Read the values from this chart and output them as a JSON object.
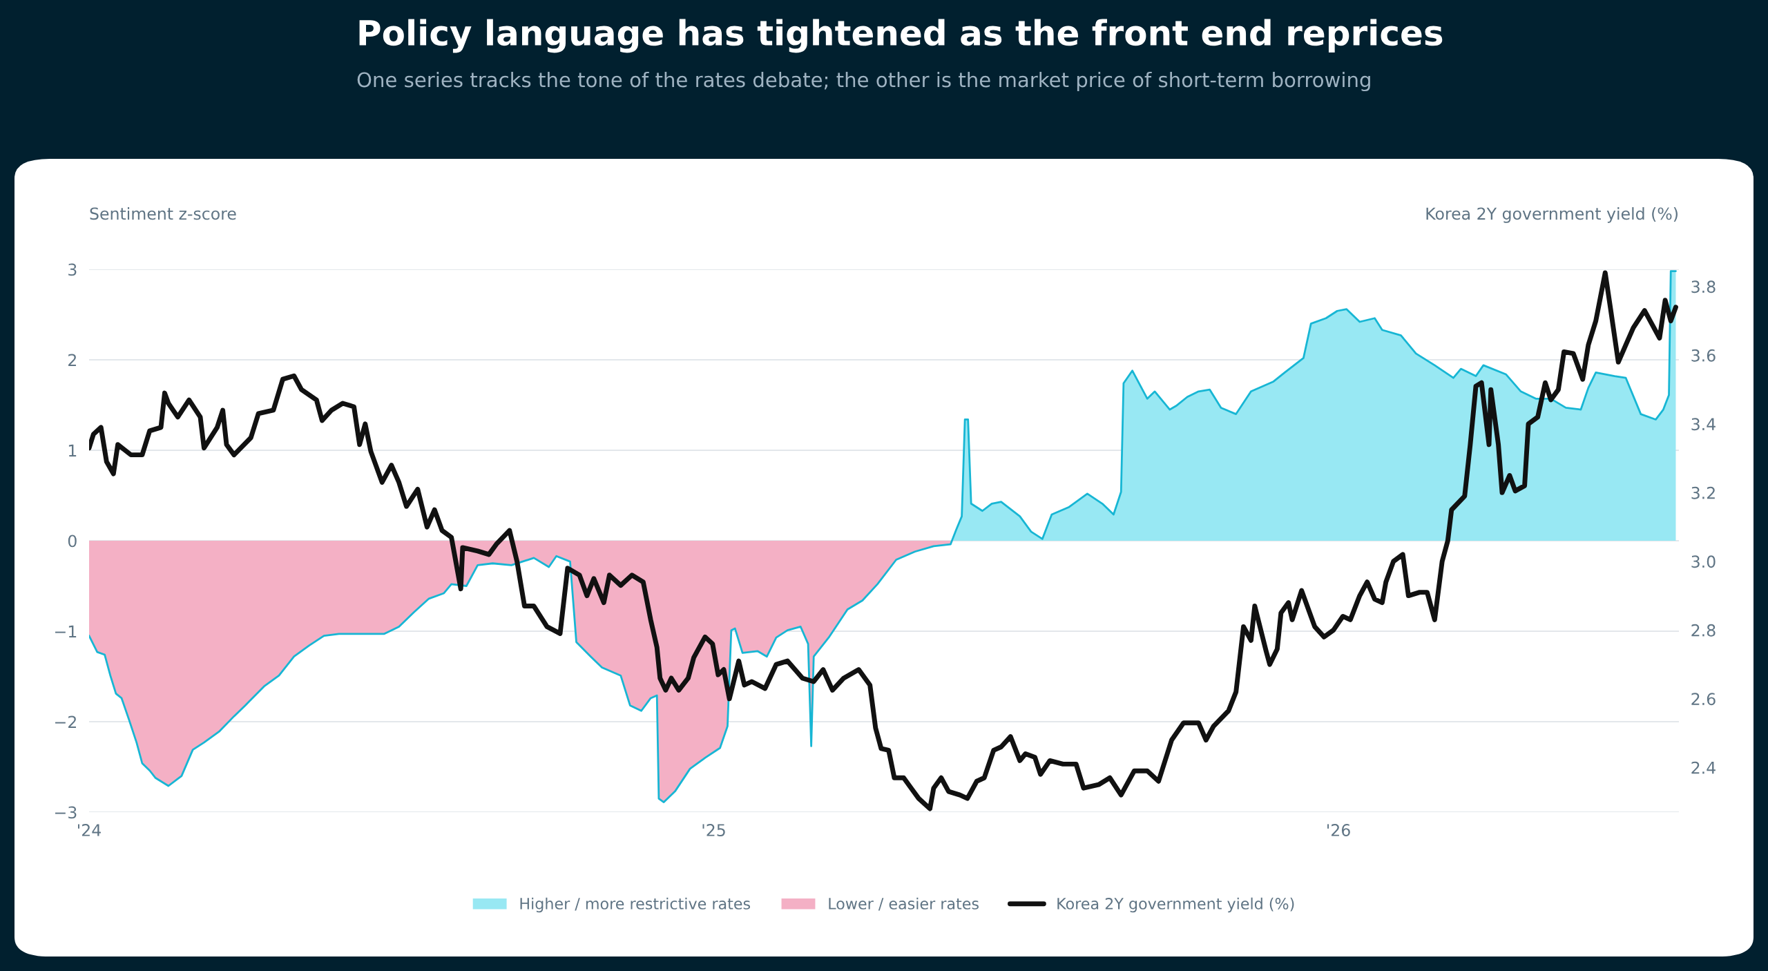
{
  "chart_data": {
    "type": "area",
    "title": "Policy language has tightened as the front end reprices",
    "subtitle": "One series tracks the tone of the rates debate; the other is the market price of short-term borrowing",
    "ylabel": "Sentiment z-score",
    "y2label": "Korea 2Y government yield (%)",
    "xlim": [
      2024,
      2026.545
    ],
    "xticks": [
      {
        "value": 2024,
        "label": "'24"
      },
      {
        "value": 2025,
        "label": "'25"
      },
      {
        "value": 2026,
        "label": "'26"
      }
    ],
    "ylim": [
      -3,
      3
    ],
    "yticks": [
      {
        "value": -3,
        "label": "−3"
      },
      {
        "value": -2,
        "label": "−2"
      },
      {
        "value": -1,
        "label": "−1"
      },
      0,
      1,
      2,
      3
    ],
    "y2lim": [
      2.27,
      3.85
    ],
    "y2ticks": [
      2.4,
      2.6,
      2.8,
      {
        "value": 3,
        "label": "3.0"
      },
      3.2,
      3.4,
      3.6,
      3.8
    ],
    "grid": "y",
    "legend": "bottom",
    "series": [
      {
        "name": "Higher / more restrictive rates",
        "color": "#98e8f3",
        "x": [
          2025.383,
          2025.388,
          2025.397,
          2025.402,
          2025.407,
          2025.412,
          2025.43,
          2025.445,
          2025.46,
          2025.49,
          2025.508,
          2025.526,
          2025.541,
          2025.568,
          2025.598,
          2025.622,
          2025.64,
          2025.652,
          2025.656,
          2025.67,
          2025.694,
          2025.706,
          2025.73,
          2025.74,
          2025.758,
          2025.776,
          2025.794,
          2025.812,
          2025.836,
          2025.86,
          2025.896,
          2025.914,
          2025.944,
          2025.956,
          2025.98,
          2025.998,
          2026.013,
          2026.034,
          2026.058,
          2026.07,
          2026.1,
          2026.124,
          2026.154,
          2026.184,
          2026.196,
          2026.22,
          2026.232,
          2026.268,
          2026.292,
          2026.316,
          2026.34,
          2026.364,
          2026.388,
          2026.4,
          2026.412,
          2026.442,
          2026.46,
          2026.484,
          2026.508,
          2026.52,
          2026.529,
          2026.532,
          2026.54
        ],
        "values": [
          0,
          0.12,
          0.27,
          1.34,
          1.34,
          0.41,
          0.33,
          0.41,
          0.43,
          0.27,
          0.1,
          0.02,
          0.29,
          0.37,
          0.52,
          0.41,
          0.29,
          0.54,
          1.74,
          1.88,
          1.57,
          1.65,
          1.45,
          1.49,
          1.59,
          1.65,
          1.67,
          1.47,
          1.4,
          1.65,
          1.76,
          1.86,
          2.02,
          2.4,
          2.46,
          2.54,
          2.56,
          2.42,
          2.46,
          2.33,
          2.27,
          2.07,
          1.94,
          1.8,
          1.9,
          1.82,
          1.94,
          1.84,
          1.65,
          1.57,
          1.57,
          1.47,
          1.45,
          1.69,
          1.86,
          1.82,
          1.8,
          1.4,
          1.34,
          1.45,
          1.61,
          2.98,
          2.98
        ]
      },
      {
        "name": "Lower / easier rates",
        "color": "#f4b0c5",
        "x": [
          2024.0,
          2024.013,
          2024.025,
          2024.034,
          2024.043,
          2024.052,
          2024.064,
          2024.076,
          2024.085,
          2024.097,
          2024.106,
          2024.127,
          2024.148,
          2024.166,
          2024.184,
          2024.208,
          2024.232,
          2024.25,
          2024.28,
          2024.304,
          2024.328,
          2024.352,
          2024.376,
          2024.4,
          2024.436,
          2024.472,
          2024.496,
          2024.52,
          2024.544,
          2024.568,
          2024.58,
          2024.604,
          2024.622,
          2024.646,
          2024.676,
          2024.712,
          2024.736,
          2024.748,
          2024.77,
          2024.78,
          2024.803,
          2024.821,
          2024.851,
          2024.866,
          2024.884,
          2024.899,
          2024.909,
          2024.912,
          2024.92,
          2024.938,
          2024.962,
          2024.986,
          2025.01,
          2025.022,
          2025.028,
          2025.034,
          2025.046,
          2025.07,
          2025.085,
          2025.1,
          2025.118,
          2025.139,
          2025.151,
          2025.156,
          2025.16,
          2025.184,
          2025.214,
          2025.238,
          2025.262,
          2025.292,
          2025.322,
          2025.352,
          2025.379,
          2025.383
        ],
        "values": [
          -1.05,
          -1.23,
          -1.26,
          -1.49,
          -1.69,
          -1.74,
          -1.98,
          -2.23,
          -2.46,
          -2.54,
          -2.62,
          -2.71,
          -2.6,
          -2.31,
          -2.23,
          -2.11,
          -1.94,
          -1.82,
          -1.61,
          -1.49,
          -1.28,
          -1.16,
          -1.05,
          -1.03,
          -1.03,
          -1.03,
          -0.95,
          -0.79,
          -0.64,
          -0.58,
          -0.48,
          -0.5,
          -0.27,
          -0.25,
          -0.27,
          -0.19,
          -0.29,
          -0.17,
          -0.23,
          -1.12,
          -1.28,
          -1.4,
          -1.49,
          -1.82,
          -1.88,
          -1.74,
          -1.71,
          -2.85,
          -2.89,
          -2.77,
          -2.52,
          -2.4,
          -2.29,
          -2.05,
          -0.99,
          -0.97,
          -1.24,
          -1.22,
          -1.28,
          -1.07,
          -0.99,
          -0.95,
          -1.14,
          -2.27,
          -1.28,
          -1.07,
          -0.76,
          -0.66,
          -0.48,
          -0.21,
          -0.12,
          -0.06,
          -0.04,
          0
        ]
      },
      {
        "type": "line",
        "color": "#17b6d4",
        "x": [
          2024.0,
          2024.013,
          2024.025,
          2024.034,
          2024.043,
          2024.052,
          2024.064,
          2024.076,
          2024.085,
          2024.097,
          2024.106,
          2024.127,
          2024.148,
          2024.166,
          2024.184,
          2024.208,
          2024.232,
          2024.25,
          2024.28,
          2024.304,
          2024.328,
          2024.352,
          2024.376,
          2024.4,
          2024.436,
          2024.472,
          2024.496,
          2024.52,
          2024.544,
          2024.568,
          2024.58,
          2024.604,
          2024.622,
          2024.646,
          2024.676,
          2024.712,
          2024.736,
          2024.748,
          2024.77,
          2024.78,
          2024.803,
          2024.821,
          2024.851,
          2024.866,
          2024.884,
          2024.899,
          2024.909,
          2024.912,
          2024.92,
          2024.938,
          2024.962,
          2024.986,
          2025.01,
          2025.022,
          2025.028,
          2025.034,
          2025.046,
          2025.07,
          2025.085,
          2025.1,
          2025.118,
          2025.139,
          2025.151,
          2025.156,
          2025.16,
          2025.184,
          2025.214,
          2025.238,
          2025.262,
          2025.292,
          2025.322,
          2025.352,
          2025.379,
          2025.388,
          2025.397,
          2025.402,
          2025.407,
          2025.412,
          2025.43,
          2025.445,
          2025.46,
          2025.49,
          2025.508,
          2025.526,
          2025.541,
          2025.568,
          2025.598,
          2025.622,
          2025.64,
          2025.652,
          2025.656,
          2025.67,
          2025.694,
          2025.706,
          2025.73,
          2025.74,
          2025.758,
          2025.776,
          2025.794,
          2025.812,
          2025.836,
          2025.86,
          2025.896,
          2025.914,
          2025.944,
          2025.956,
          2025.98,
          2025.998,
          2026.013,
          2026.034,
          2026.058,
          2026.07,
          2026.1,
          2026.124,
          2026.154,
          2026.184,
          2026.196,
          2026.22,
          2026.232,
          2026.268,
          2026.292,
          2026.316,
          2026.34,
          2026.364,
          2026.388,
          2026.4,
          2026.412,
          2026.442,
          2026.46,
          2026.484,
          2026.508,
          2026.52,
          2026.529,
          2026.532,
          2026.54
        ],
        "values": [
          -1.05,
          -1.23,
          -1.26,
          -1.49,
          -1.69,
          -1.74,
          -1.98,
          -2.23,
          -2.46,
          -2.54,
          -2.62,
          -2.71,
          -2.6,
          -2.31,
          -2.23,
          -2.11,
          -1.94,
          -1.82,
          -1.61,
          -1.49,
          -1.28,
          -1.16,
          -1.05,
          -1.03,
          -1.03,
          -1.03,
          -0.95,
          -0.79,
          -0.64,
          -0.58,
          -0.48,
          -0.5,
          -0.27,
          -0.25,
          -0.27,
          -0.19,
          -0.29,
          -0.17,
          -0.23,
          -1.12,
          -1.28,
          -1.4,
          -1.49,
          -1.82,
          -1.88,
          -1.74,
          -1.71,
          -2.85,
          -2.89,
          -2.77,
          -2.52,
          -2.4,
          -2.29,
          -2.05,
          -0.99,
          -0.97,
          -1.24,
          -1.22,
          -1.28,
          -1.07,
          -0.99,
          -0.95,
          -1.14,
          -2.27,
          -1.28,
          -1.07,
          -0.76,
          -0.66,
          -0.48,
          -0.21,
          -0.12,
          -0.06,
          -0.04,
          0.12,
          0.27,
          1.34,
          1.34,
          0.41,
          0.33,
          0.41,
          0.43,
          0.27,
          0.1,
          0.02,
          0.29,
          0.37,
          0.52,
          0.41,
          0.29,
          0.54,
          1.74,
          1.88,
          1.57,
          1.65,
          1.45,
          1.49,
          1.59,
          1.65,
          1.67,
          1.47,
          1.4,
          1.65,
          1.76,
          1.86,
          2.02,
          2.4,
          2.46,
          2.54,
          2.56,
          2.42,
          2.46,
          2.33,
          2.27,
          2.07,
          1.94,
          1.8,
          1.9,
          1.82,
          1.94,
          1.84,
          1.65,
          1.57,
          1.57,
          1.47,
          1.45,
          1.69,
          1.86,
          1.82,
          1.8,
          1.4,
          1.34,
          1.45,
          1.61,
          2.98,
          2.98
        ]
      },
      {
        "name": "Korea 2Y government yield (%)",
        "type": "line",
        "axis": "y2",
        "color": "#111111",
        "x": [
          2024.0,
          2024.007,
          2024.019,
          2024.028,
          2024.039,
          2024.046,
          2024.067,
          2024.085,
          2024.097,
          2024.115,
          2024.121,
          2024.127,
          2024.142,
          2024.16,
          2024.178,
          2024.184,
          2024.205,
          2024.214,
          2024.22,
          2024.232,
          2024.259,
          2024.271,
          2024.295,
          2024.31,
          2024.328,
          2024.34,
          2024.364,
          2024.373,
          2024.388,
          2024.406,
          2024.424,
          2024.433,
          2024.442,
          2024.451,
          2024.469,
          2024.484,
          2024.496,
          2024.508,
          2024.526,
          2024.541,
          2024.553,
          2024.565,
          2024.58,
          2024.595,
          2024.598,
          2024.622,
          2024.64,
          2024.652,
          2024.673,
          2024.685,
          2024.697,
          2024.712,
          2024.733,
          2024.754,
          2024.766,
          2024.785,
          2024.797,
          2024.808,
          2024.824,
          2024.833,
          2024.851,
          2024.869,
          2024.887,
          2024.899,
          2024.909,
          2024.914,
          2024.923,
          2024.932,
          2024.944,
          2024.959,
          2024.968,
          2024.986,
          2024.998,
          2025.007,
          2025.016,
          2025.025,
          2025.04,
          2025.049,
          2025.061,
          2025.082,
          2025.1,
          2025.118,
          2025.13,
          2025.142,
          2025.16,
          2025.175,
          2025.19,
          2025.208,
          2025.232,
          2025.25,
          2025.259,
          2025.268,
          2025.28,
          2025.289,
          2025.304,
          2025.316,
          2025.328,
          2025.346,
          2025.352,
          2025.364,
          2025.376,
          2025.394,
          2025.406,
          2025.421,
          2025.433,
          2025.448,
          2025.46,
          2025.475,
          2025.49,
          2025.499,
          2025.514,
          2025.523,
          2025.538,
          2025.559,
          2025.58,
          2025.592,
          2025.616,
          2025.634,
          2025.652,
          2025.673,
          2025.694,
          2025.712,
          2025.733,
          2025.752,
          2025.776,
          2025.788,
          2025.8,
          2025.824,
          2025.836,
          2025.848,
          2025.86,
          2025.866,
          2025.884,
          2025.89,
          2025.902,
          2025.908,
          2025.92,
          2025.926,
          2025.941,
          2025.956,
          2025.962,
          2025.977,
          2025.992,
          2026.007,
          2026.019,
          2026.034,
          2026.046,
          2026.058,
          2026.07,
          2026.076,
          2026.088,
          2026.103,
          2026.112,
          2026.13,
          2026.142,
          2026.154,
          2026.166,
          2026.175,
          2026.181,
          2026.202,
          2026.211,
          2026.22,
          2026.229,
          2026.241,
          2026.244,
          2026.256,
          2026.262,
          2026.274,
          2026.283,
          2026.298,
          2026.304,
          2026.319,
          2026.331,
          2026.34,
          2026.352,
          2026.361,
          2026.376,
          2026.391,
          2026.4,
          2026.412,
          2026.427,
          2026.436,
          2026.448,
          2026.46,
          2026.472,
          2026.49,
          2026.502,
          2026.514,
          2026.523,
          2026.532,
          2026.54
        ],
        "values": [
          3.33,
          3.37,
          3.39,
          3.29,
          3.255,
          3.34,
          3.31,
          3.31,
          3.38,
          3.39,
          3.49,
          3.46,
          3.42,
          3.47,
          3.42,
          3.33,
          3.39,
          3.44,
          3.34,
          3.31,
          3.36,
          3.43,
          3.44,
          3.53,
          3.54,
          3.5,
          3.47,
          3.41,
          3.44,
          3.46,
          3.45,
          3.34,
          3.4,
          3.32,
          3.23,
          3.28,
          3.23,
          3.16,
          3.21,
          3.1,
          3.15,
          3.09,
          3.07,
          2.92,
          3.04,
          3.03,
          3.02,
          3.05,
          3.09,
          3.0,
          2.87,
          2.87,
          2.81,
          2.79,
          2.98,
          2.96,
          2.9,
          2.95,
          2.88,
          2.96,
          2.93,
          2.96,
          2.94,
          2.83,
          2.75,
          2.66,
          2.625,
          2.66,
          2.625,
          2.66,
          2.72,
          2.78,
          2.76,
          2.67,
          2.685,
          2.6,
          2.71,
          2.64,
          2.65,
          2.63,
          2.7,
          2.71,
          2.685,
          2.66,
          2.65,
          2.685,
          2.625,
          2.66,
          2.685,
          2.64,
          2.515,
          2.455,
          2.45,
          2.37,
          2.37,
          2.34,
          2.31,
          2.28,
          2.34,
          2.37,
          2.33,
          2.32,
          2.31,
          2.36,
          2.37,
          2.45,
          2.46,
          2.49,
          2.42,
          2.44,
          2.43,
          2.38,
          2.42,
          2.41,
          2.41,
          2.34,
          2.35,
          2.37,
          2.32,
          2.39,
          2.39,
          2.36,
          2.48,
          2.53,
          2.53,
          2.48,
          2.52,
          2.565,
          2.62,
          2.81,
          2.77,
          2.87,
          2.74,
          2.7,
          2.745,
          2.85,
          2.88,
          2.83,
          2.915,
          2.84,
          2.81,
          2.78,
          2.8,
          2.84,
          2.83,
          2.9,
          2.94,
          2.89,
          2.88,
          2.94,
          3.0,
          3.02,
          2.9,
          2.91,
          2.91,
          2.83,
          3.0,
          3.06,
          3.15,
          3.19,
          3.34,
          3.51,
          3.52,
          3.34,
          3.5,
          3.34,
          3.2,
          3.25,
          3.205,
          3.22,
          3.4,
          3.42,
          3.52,
          3.47,
          3.5,
          3.61,
          3.605,
          3.53,
          3.63,
          3.7,
          3.84,
          3.73,
          3.58,
          3.63,
          3.68,
          3.73,
          3.69,
          3.65,
          3.76,
          3.7,
          3.74
        ]
      }
    ]
  }
}
